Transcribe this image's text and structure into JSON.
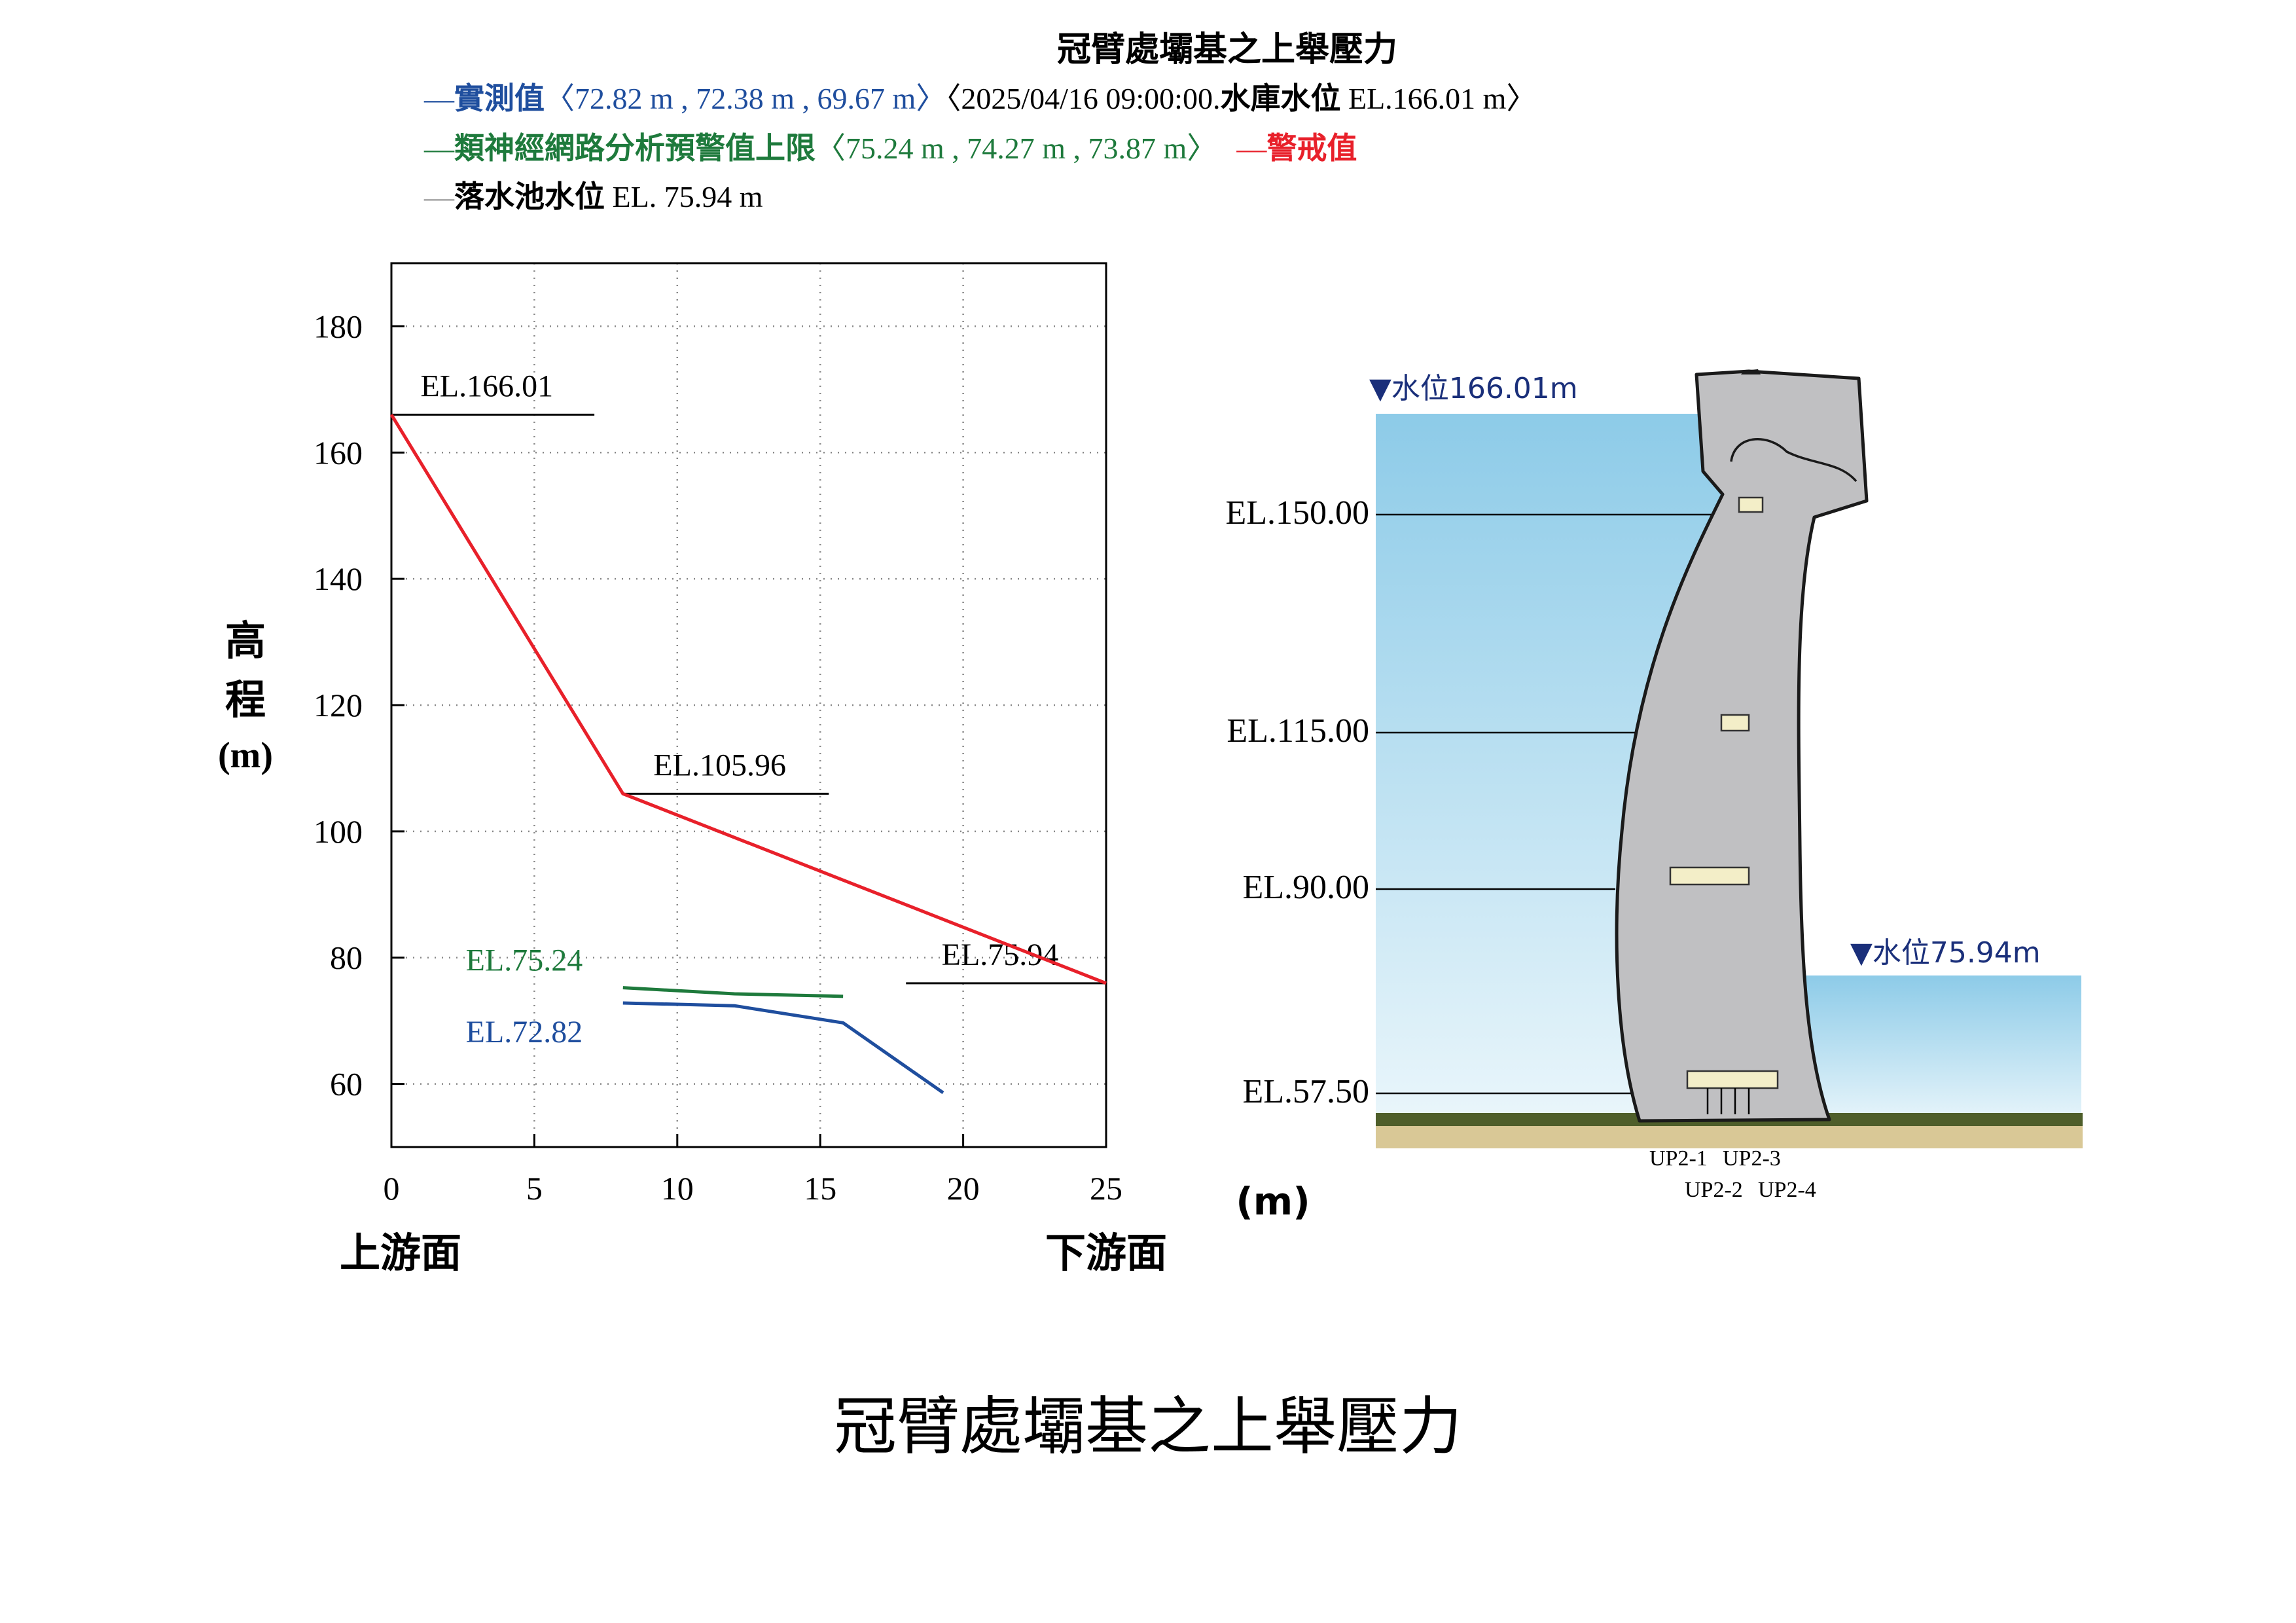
{
  "header": {
    "title": "冠臂處壩基之上舉壓力",
    "legend": {
      "measured": {
        "dash": "—",
        "label": "實測值",
        "values": "〈72.82 m , 72.38 m , 69.67 m〉",
        "time_prefix": "〈2025/04/16 09:00:00.",
        "reservoir_label": "水庫水位",
        "reservoir_value": " EL.166.01 m〉"
      },
      "predicted": {
        "dash": "—",
        "label": "類神經網路分析預警值上限",
        "values": "〈75.24 m , 74.27 m , 73.87 m〉"
      },
      "alert": {
        "dash": "—",
        "label": "警戒值"
      },
      "tailwater": {
        "dash": "—",
        "label": "落水池水位",
        "value": " EL. 75.94 m"
      }
    }
  },
  "colors": {
    "measured": "#1f4e9e",
    "predicted": "#1e7a3c",
    "alert": "#e8202a",
    "tailwater_line": "#999999",
    "reservoir_water_top": "#8dcbe8",
    "reservoir_water_bottom": "#eaf6fb",
    "dam_body": "#c0c0c2",
    "dam_outline": "#1a1a1a",
    "gallery": "#f3eec8",
    "foundation": "#d9c896",
    "ground_strip": "#4e5e2a"
  },
  "chart_data": {
    "type": "line",
    "xlabel_left": "上游面",
    "xlabel_right": "下游面",
    "ylabel": [
      "高",
      "程",
      "(m)"
    ],
    "xlim": [
      0,
      25
    ],
    "ylim": [
      50,
      190
    ],
    "xticks": [
      0,
      5,
      10,
      15,
      20,
      25
    ],
    "yticks": [
      60,
      80,
      100,
      120,
      140,
      160,
      180
    ],
    "grid": true,
    "series": [
      {
        "key": "alert",
        "x": [
          0,
          8.1,
          25
        ],
        "y": [
          166.01,
          105.96,
          75.94
        ]
      },
      {
        "key": "predicted",
        "x": [
          8.1,
          12.0,
          15.8
        ],
        "y": [
          75.24,
          74.27,
          73.87
        ]
      },
      {
        "key": "measured",
        "x": [
          8.1,
          12.0,
          15.8,
          19.3
        ],
        "y": [
          72.82,
          72.38,
          69.67,
          58.6
        ]
      }
    ],
    "reference_lines": [
      {
        "label": "EL.166.01",
        "x": [
          0,
          7.1
        ],
        "y": 166.01
      },
      {
        "label": "EL.105.96",
        "x": [
          8.1,
          15.3
        ],
        "y": 105.96
      },
      {
        "label": "EL.75.94",
        "x": [
          18.0,
          25
        ],
        "y": 75.94
      }
    ],
    "annotations": [
      {
        "text": "EL.75.24",
        "key": "predicted"
      },
      {
        "text": "EL.72.82",
        "key": "measured"
      }
    ]
  },
  "diagram": {
    "unit_label": "(m)",
    "reservoir_level_label": "▼水位166.01m",
    "tailwater_level_label": "▼水位75.94m",
    "elevations": [
      "EL.150.00",
      "EL.115.00",
      "EL.90.00",
      "EL.57.50"
    ],
    "piezometers": [
      "UP2-1",
      "UP2-3",
      "UP2-2",
      "UP2-4"
    ]
  },
  "caption": "冠臂處壩基之上舉壓力"
}
